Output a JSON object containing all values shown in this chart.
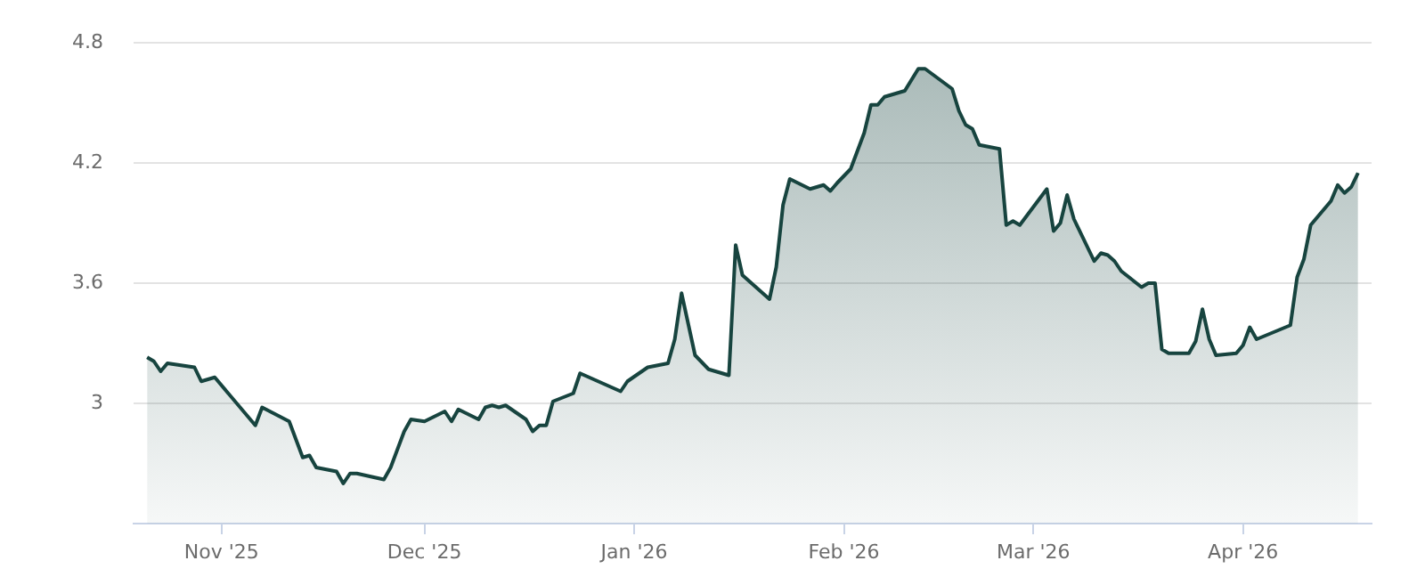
{
  "chart_data": {
    "type": "area",
    "grid": "y",
    "legend": false,
    "marker": "none",
    "line_style": "solid",
    "xlim": [
      "2025-10-19",
      "2026-04-20"
    ],
    "xticks": [
      {
        "value": "2025-11-01",
        "label": "Nov '25"
      },
      {
        "value": "2025-12-01",
        "label": "Dec '25"
      },
      {
        "value": "2026-01-01",
        "label": "Jan '26"
      },
      {
        "value": "2026-02-01",
        "label": "Feb '26"
      },
      {
        "value": "2026-03-01",
        "label": "Mar '26"
      },
      {
        "value": "2026-04-01",
        "label": "Apr '26"
      }
    ],
    "ylim": [
      2.4,
      4.8
    ],
    "yticks": [
      3,
      3.6,
      4.2,
      4.8
    ],
    "x": [
      "2025-10-21",
      "2025-10-22",
      "2025-10-23",
      "2025-10-24",
      "2025-10-28",
      "2025-10-29",
      "2025-10-31",
      "2025-11-06",
      "2025-11-07",
      "2025-11-11",
      "2025-11-13",
      "2025-11-14",
      "2025-11-15",
      "2025-11-18",
      "2025-11-19",
      "2025-11-20",
      "2025-11-21",
      "2025-11-25",
      "2025-11-26",
      "2025-11-28",
      "2025-11-29",
      "2025-12-01",
      "2025-12-04",
      "2025-12-05",
      "2025-12-06",
      "2025-12-09",
      "2025-12-10",
      "2025-12-11",
      "2025-12-12",
      "2025-12-13",
      "2025-12-16",
      "2025-12-17",
      "2025-12-18",
      "2025-12-19",
      "2025-12-20",
      "2025-12-23",
      "2025-12-24",
      "2025-12-30",
      "2025-12-31",
      "2026-01-03",
      "2026-01-06",
      "2026-01-07",
      "2026-01-08",
      "2026-01-10",
      "2026-01-12",
      "2026-01-15",
      "2026-01-16",
      "2026-01-17",
      "2026-01-21",
      "2026-01-22",
      "2026-01-23",
      "2026-01-24",
      "2026-01-27",
      "2026-01-29",
      "2026-01-30",
      "2026-01-31",
      "2026-02-02",
      "2026-02-04",
      "2026-02-05",
      "2026-02-06",
      "2026-02-07",
      "2026-02-10",
      "2026-02-12",
      "2026-02-13",
      "2026-02-17",
      "2026-02-18",
      "2026-02-19",
      "2026-02-20",
      "2026-02-21",
      "2026-02-24",
      "2026-02-25",
      "2026-02-26",
      "2026-02-27",
      "2026-03-03",
      "2026-03-04",
      "2026-03-05",
      "2026-03-06",
      "2026-03-07",
      "2026-03-10",
      "2026-03-11",
      "2026-03-12",
      "2026-03-13",
      "2026-03-14",
      "2026-03-17",
      "2026-03-18",
      "2026-03-19",
      "2026-03-20",
      "2026-03-21",
      "2026-03-24",
      "2026-03-25",
      "2026-03-26",
      "2026-03-27",
      "2026-03-28",
      "2026-03-31",
      "2026-04-01",
      "2026-04-02",
      "2026-04-03",
      "2026-04-08",
      "2026-04-09",
      "2026-04-10",
      "2026-04-11",
      "2026-04-14",
      "2026-04-15",
      "2026-04-16",
      "2026-04-17",
      "2026-04-18"
    ],
    "series": [
      {
        "color": "#17443f",
        "values": [
          3.23,
          3.21,
          3.16,
          3.2,
          3.18,
          3.11,
          3.13,
          2.89,
          2.98,
          2.91,
          2.73,
          2.74,
          2.68,
          2.66,
          2.6,
          2.65,
          2.65,
          2.62,
          2.68,
          2.86,
          2.92,
          2.91,
          2.96,
          2.91,
          2.97,
          2.92,
          2.98,
          2.99,
          2.98,
          2.99,
          2.92,
          2.86,
          2.89,
          2.89,
          3.01,
          3.05,
          3.15,
          3.06,
          3.11,
          3.18,
          3.2,
          3.32,
          3.55,
          3.24,
          3.17,
          3.14,
          3.79,
          3.64,
          3.52,
          3.68,
          3.99,
          4.12,
          4.07,
          4.09,
          4.06,
          4.1,
          4.17,
          4.35,
          4.49,
          4.49,
          4.53,
          4.56,
          4.67,
          4.67,
          4.57,
          4.46,
          4.39,
          4.37,
          4.29,
          4.27,
          3.89,
          3.91,
          3.89,
          4.07,
          3.86,
          3.9,
          4.04,
          3.92,
          3.71,
          3.75,
          3.74,
          3.71,
          3.66,
          3.58,
          3.6,
          3.6,
          3.27,
          3.25,
          3.25,
          3.31,
          3.47,
          3.32,
          3.24,
          3.25,
          3.29,
          3.38,
          3.32,
          3.39,
          3.63,
          3.72,
          3.89,
          4.01,
          4.09,
          4.05,
          4.08,
          4.15
        ]
      }
    ]
  }
}
